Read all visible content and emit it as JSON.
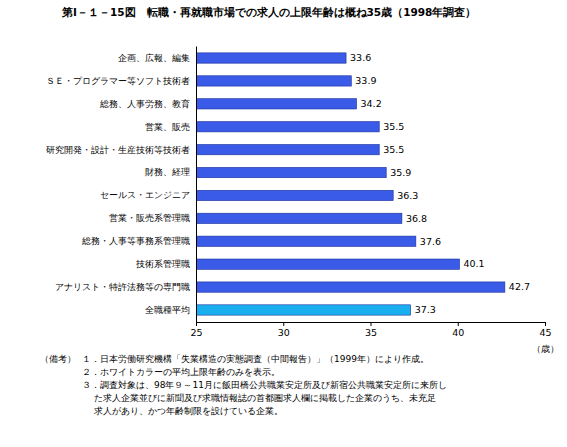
{
  "chart_data": {
    "type": "bar",
    "orientation": "horizontal",
    "title": "第Ⅰ－１－15図　転職・再就職市場での求人の上限年齢は概ね35歳（1998年調査）",
    "categories": [
      "企画、広報、編集",
      "ＳＥ・プログラマー等ソフト技術者",
      "総務、人事労務、教育",
      "営業、販売",
      "研究開発・設計・生産技術等技術者",
      "財務、経理",
      "セールス・エンジニア",
      "営業・販売系管理職",
      "総務・人事等事務系管理職",
      "技術系管理職",
      "アナリスト・特許法務等の専門職",
      "全職種平均"
    ],
    "values": [
      33.6,
      33.9,
      34.2,
      35.5,
      35.5,
      35.9,
      36.3,
      36.8,
      37.6,
      40.1,
      42.7,
      37.3
    ],
    "colors": [
      "#3a5ae8",
      "#3a5ae8",
      "#3a5ae8",
      "#3a5ae8",
      "#3a5ae8",
      "#3a5ae8",
      "#3a5ae8",
      "#3a5ae8",
      "#3a5ae8",
      "#3a5ae8",
      "#3a5ae8",
      "#1ab0f0"
    ],
    "xlim": [
      25,
      45
    ],
    "xticks": [
      25,
      30,
      35,
      40,
      45
    ],
    "xlabel": "（歳）",
    "grid": false,
    "data_labels": true,
    "notes_header": "（備考）",
    "notes": [
      "１．日本労働研究機構「失業構造の実態調査（中間報告）」（1999年）により作成。",
      "２．ホワイトカラーの平均上限年齢のみを表示。",
      "３．調査対象は、98年９～11月に飯田橋公共職業安定所及び新宿公共職業安定所に来所し",
      "た求人企業並びに新聞及び求職情報誌の首都圏求人欄に掲載した企業のうち、未充足",
      "求人があり、かつ年齢制限を設けている企業。"
    ]
  }
}
